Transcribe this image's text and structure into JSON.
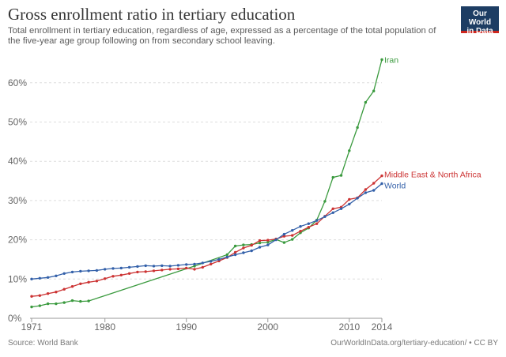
{
  "header": {
    "title": "Gross enrollment ratio in tertiary education",
    "subtitle": "Total enrollment in tertiary education, regardless of age, expressed as a percentage of the total population of the five-year age group following on from secondary school leaving.",
    "logo_line1": "Our World",
    "logo_line2": "in Data"
  },
  "footer": {
    "source": "Source: World Bank",
    "license": "OurWorldInData.org/tertiary-education/ • CC BY"
  },
  "chart_data": {
    "type": "line",
    "title": "Gross enrollment ratio in tertiary education",
    "xlabel": "",
    "ylabel": "",
    "xlim": [
      1971,
      2014
    ],
    "ylim": [
      0,
      67
    ],
    "x_ticks": [
      1971,
      1980,
      1990,
      2000,
      2010,
      2014
    ],
    "y_ticks": [
      0,
      10,
      20,
      30,
      40,
      50,
      60
    ],
    "y_tick_format": "percent",
    "grid": "horizontal-dashed",
    "legend": "inline-right",
    "series": [
      {
        "name": "Iran",
        "color": "#3a9a3e",
        "points": [
          [
            1971,
            2.9
          ],
          [
            1972,
            3.2
          ],
          [
            1973,
            3.7
          ],
          [
            1974,
            3.7
          ],
          [
            1975,
            4.0
          ],
          [
            1976,
            4.5
          ],
          [
            1977,
            4.3
          ],
          [
            1978,
            4.4
          ],
          [
            1991,
            13.3
          ],
          [
            1995,
            16.2
          ],
          [
            1996,
            18.4
          ],
          [
            1997,
            18.7
          ],
          [
            1998,
            18.8
          ],
          [
            1999,
            19.2
          ],
          [
            2000,
            19.4
          ],
          [
            2001,
            20.1
          ],
          [
            2002,
            19.3
          ],
          [
            2003,
            20.1
          ],
          [
            2004,
            21.8
          ],
          [
            2005,
            23.0
          ],
          [
            2006,
            25.0
          ],
          [
            2007,
            29.8
          ],
          [
            2008,
            35.9
          ],
          [
            2009,
            36.4
          ],
          [
            2010,
            42.7
          ],
          [
            2011,
            48.6
          ],
          [
            2012,
            55.0
          ],
          [
            2013,
            57.9
          ],
          [
            2014,
            65.9
          ]
        ]
      },
      {
        "name": "Middle East & North Africa",
        "color": "#cc3333",
        "points": [
          [
            1971,
            5.6
          ],
          [
            1972,
            5.8
          ],
          [
            1973,
            6.3
          ],
          [
            1974,
            6.7
          ],
          [
            1975,
            7.4
          ],
          [
            1976,
            8.1
          ],
          [
            1977,
            8.8
          ],
          [
            1978,
            9.2
          ],
          [
            1979,
            9.5
          ],
          [
            1980,
            10.1
          ],
          [
            1981,
            10.7
          ],
          [
            1982,
            11.0
          ],
          [
            1983,
            11.4
          ],
          [
            1984,
            11.8
          ],
          [
            1985,
            11.9
          ],
          [
            1986,
            12.1
          ],
          [
            1987,
            12.3
          ],
          [
            1988,
            12.5
          ],
          [
            1989,
            12.6
          ],
          [
            1990,
            12.8
          ],
          [
            1991,
            12.5
          ],
          [
            1992,
            13.0
          ],
          [
            1993,
            13.8
          ],
          [
            1994,
            14.6
          ],
          [
            1995,
            15.5
          ],
          [
            1996,
            16.8
          ],
          [
            1997,
            17.9
          ],
          [
            1998,
            18.6
          ],
          [
            1999,
            19.8
          ],
          [
            2000,
            19.9
          ],
          [
            2001,
            20.2
          ],
          [
            2002,
            20.9
          ],
          [
            2003,
            21.1
          ],
          [
            2004,
            22.2
          ],
          [
            2005,
            23.2
          ],
          [
            2006,
            24.1
          ],
          [
            2007,
            26.0
          ],
          [
            2008,
            27.9
          ],
          [
            2009,
            28.3
          ],
          [
            2010,
            30.3
          ],
          [
            2011,
            30.7
          ],
          [
            2012,
            32.8
          ],
          [
            2013,
            34.4
          ],
          [
            2014,
            36.3
          ]
        ]
      },
      {
        "name": "World",
        "color": "#3360a9",
        "points": [
          [
            1971,
            10.0
          ],
          [
            1972,
            10.2
          ],
          [
            1973,
            10.4
          ],
          [
            1974,
            10.8
          ],
          [
            1975,
            11.4
          ],
          [
            1976,
            11.8
          ],
          [
            1977,
            12.0
          ],
          [
            1978,
            12.1
          ],
          [
            1979,
            12.2
          ],
          [
            1980,
            12.5
          ],
          [
            1981,
            12.7
          ],
          [
            1982,
            12.8
          ],
          [
            1983,
            13.0
          ],
          [
            1984,
            13.2
          ],
          [
            1985,
            13.4
          ],
          [
            1986,
            13.3
          ],
          [
            1987,
            13.4
          ],
          [
            1988,
            13.3
          ],
          [
            1989,
            13.5
          ],
          [
            1990,
            13.7
          ],
          [
            1991,
            13.8
          ],
          [
            1992,
            14.1
          ],
          [
            1993,
            14.5
          ],
          [
            1994,
            15.0
          ],
          [
            1995,
            15.6
          ],
          [
            1996,
            16.2
          ],
          [
            1997,
            16.7
          ],
          [
            1998,
            17.2
          ],
          [
            1999,
            18.1
          ],
          [
            2000,
            18.7
          ],
          [
            2001,
            20.0
          ],
          [
            2002,
            21.4
          ],
          [
            2003,
            22.4
          ],
          [
            2004,
            23.4
          ],
          [
            2005,
            24.1
          ],
          [
            2006,
            24.9
          ],
          [
            2007,
            25.9
          ],
          [
            2008,
            26.9
          ],
          [
            2009,
            27.9
          ],
          [
            2010,
            29.1
          ],
          [
            2011,
            30.6
          ],
          [
            2012,
            32.0
          ],
          [
            2013,
            32.6
          ],
          [
            2014,
            34.3
          ]
        ]
      }
    ]
  }
}
